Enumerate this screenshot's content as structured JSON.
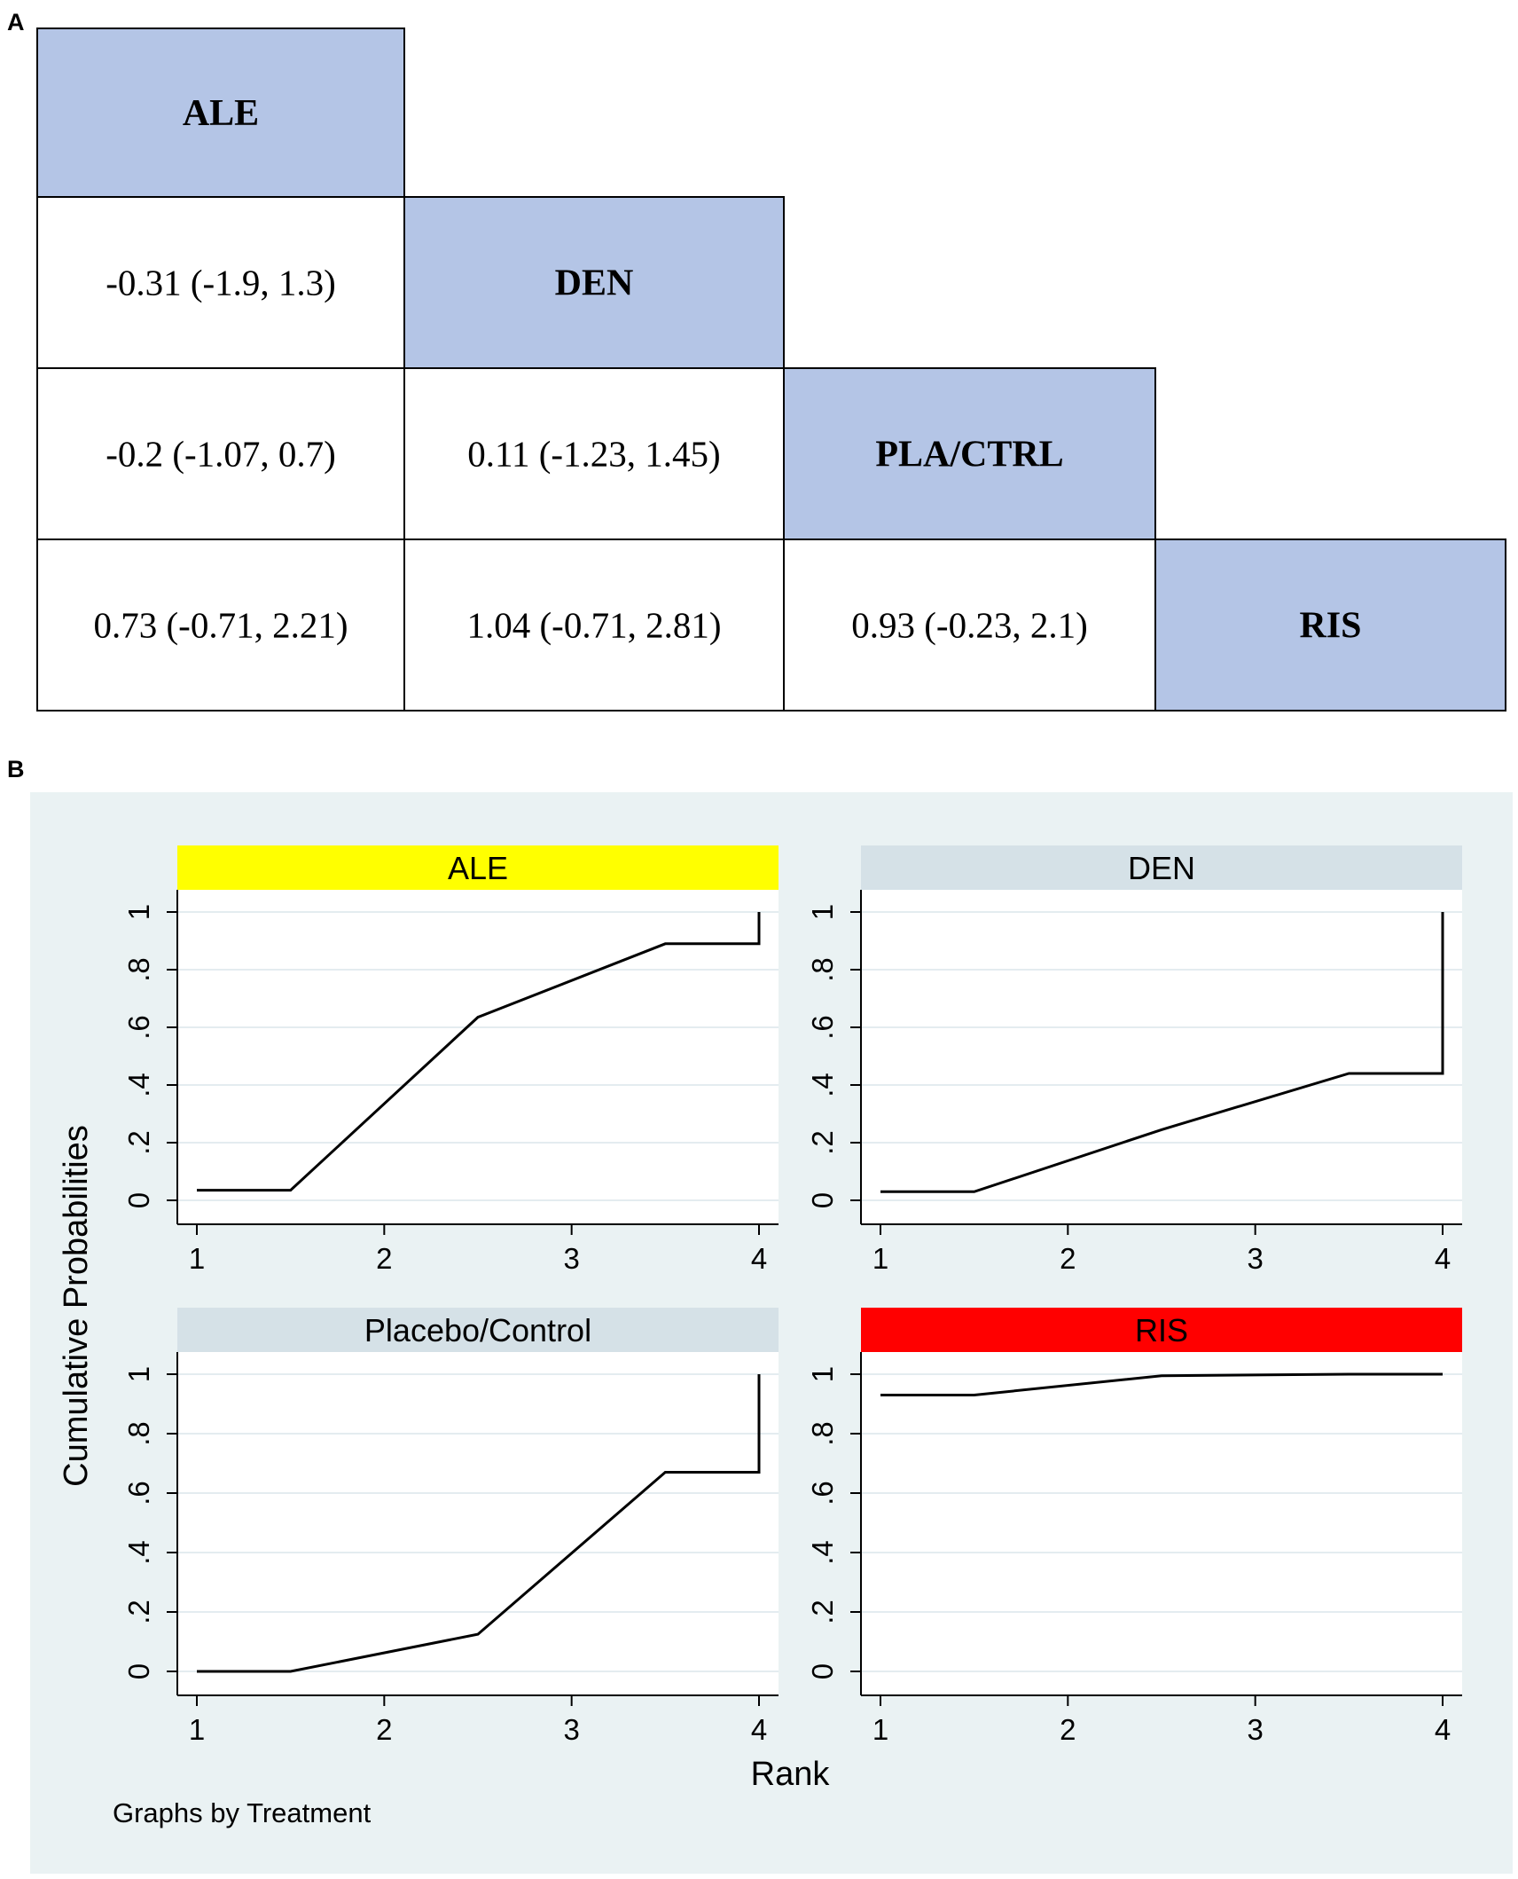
{
  "panel_labels": {
    "a": "A",
    "b": "B"
  },
  "league_table": {
    "diagonal": [
      "ALE",
      "DEN",
      "PLA/CTRL",
      "RIS"
    ],
    "rows": [
      [
        "-0.31 (-1.9, 1.3)"
      ],
      [
        "-0.2 (-1.07, 0.7)",
        "0.11 (-1.23, 1.45)"
      ],
      [
        "0.73 (-0.71, 2.21)",
        "1.04 (-0.71, 2.81)",
        "0.93 (-0.23, 2.1)"
      ]
    ],
    "colors": {
      "diagonal_fill": "#b4c5e6",
      "cell_fill": "#ffffff",
      "border": "#000000"
    }
  },
  "chart_data": {
    "type": "line",
    "y_axis_title": "Cumulative Probabilities",
    "x_axis_title": "Rank",
    "note": "Graphs by Treatment",
    "x_ticks": [
      "1",
      "2",
      "3",
      "4"
    ],
    "y_ticks": [
      "0",
      ".2",
      ".4",
      ".6",
      ".8",
      "1"
    ],
    "xlim": [
      1,
      4
    ],
    "ylim": [
      0,
      1
    ],
    "grid": true,
    "colors": {
      "figure_bg": "#eaf2f3",
      "plot_bg": "#ffffff",
      "grid": "#e4ecf0",
      "line": "#000000",
      "default_strip": "#d5e1e7"
    },
    "panels": [
      {
        "title": "ALE",
        "strip_color": "#ffff00",
        "x": [
          1,
          1.5,
          2.5,
          3.5,
          4,
          4
        ],
        "y": [
          0.035,
          0.035,
          0.635,
          0.89,
          0.89,
          1.0
        ]
      },
      {
        "title": "DEN",
        "strip_color": "#d5e1e7",
        "x": [
          1,
          1.5,
          2.5,
          3.5,
          4,
          4
        ],
        "y": [
          0.03,
          0.03,
          0.245,
          0.44,
          0.44,
          1.0
        ]
      },
      {
        "title": "Placebo/Control",
        "strip_color": "#d5e1e7",
        "x": [
          1,
          1.5,
          2.5,
          3.5,
          4,
          4
        ],
        "y": [
          0.0,
          0.0,
          0.125,
          0.67,
          0.67,
          1.0
        ]
      },
      {
        "title": "RIS",
        "strip_color": "#ff0000",
        "x": [
          1,
          1.5,
          2.5,
          3.5,
          4
        ],
        "y": [
          0.93,
          0.93,
          0.995,
          1.0,
          1.0
        ]
      }
    ]
  }
}
